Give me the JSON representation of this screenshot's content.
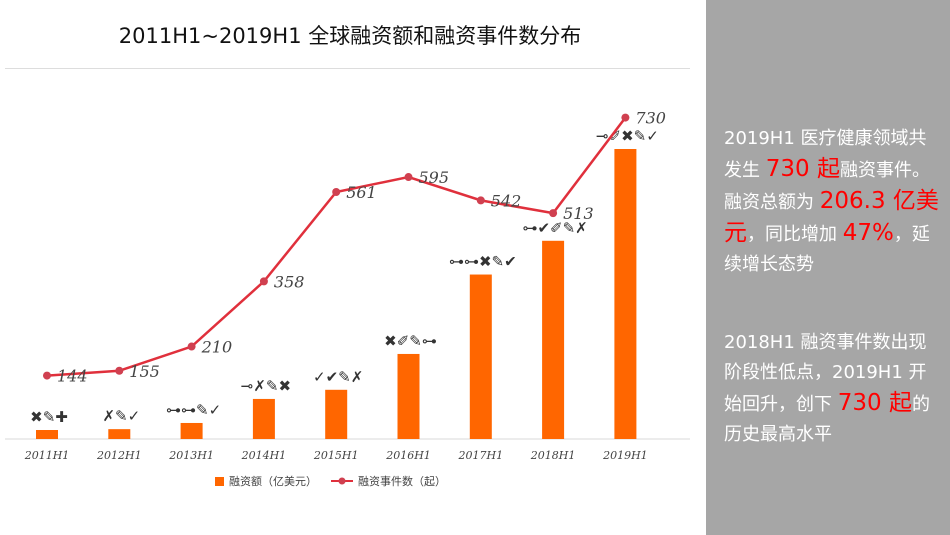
{
  "title": "2011H1~2019H1 全球融资额和融资事件数分布",
  "chart_data": {
    "type": "bar+line",
    "categories": [
      "2011H1",
      "2012H1",
      "2013H1",
      "2014H1",
      "2015H1",
      "2016H1",
      "2017H1",
      "2018H1",
      "2019H1"
    ],
    "series": [
      {
        "name": "融资额（亿美元）",
        "type": "bar",
        "color": "#ff6600",
        "values": [
          6.4,
          7,
          11.4,
          28.5,
          35,
          60.5,
          117,
          141,
          206.3
        ],
        "labels": [
          "✖✎✚",
          "✗✎✓",
          "⊶⊶✎✓",
          "⊸✗✎✖",
          "✓✔✎✗",
          "✖✐✎⊶",
          "⊶⊶✖✎✔",
          "⊶✔✐✎✗",
          "⊸✐✖✎✓"
        ]
      },
      {
        "name": "融资事件数（起）",
        "type": "line",
        "color": "#e0303c",
        "values": [
          144,
          155,
          210,
          358,
          561,
          595,
          542,
          513,
          730
        ]
      }
    ],
    "legend": "bottom"
  },
  "panel": {
    "p1": [
      "2019H1 医疗健康领域共发生 ",
      "730 起",
      "融资事件。融资总额为 ",
      "206.3 亿美元",
      "，同比增加 ",
      "47%",
      "，延续增长态势"
    ],
    "p2": [
      "2018H1 融资事件数出现阶段性低点，2019H1 开始回升，创下 ",
      "730 起",
      "的历史最高水平"
    ]
  }
}
